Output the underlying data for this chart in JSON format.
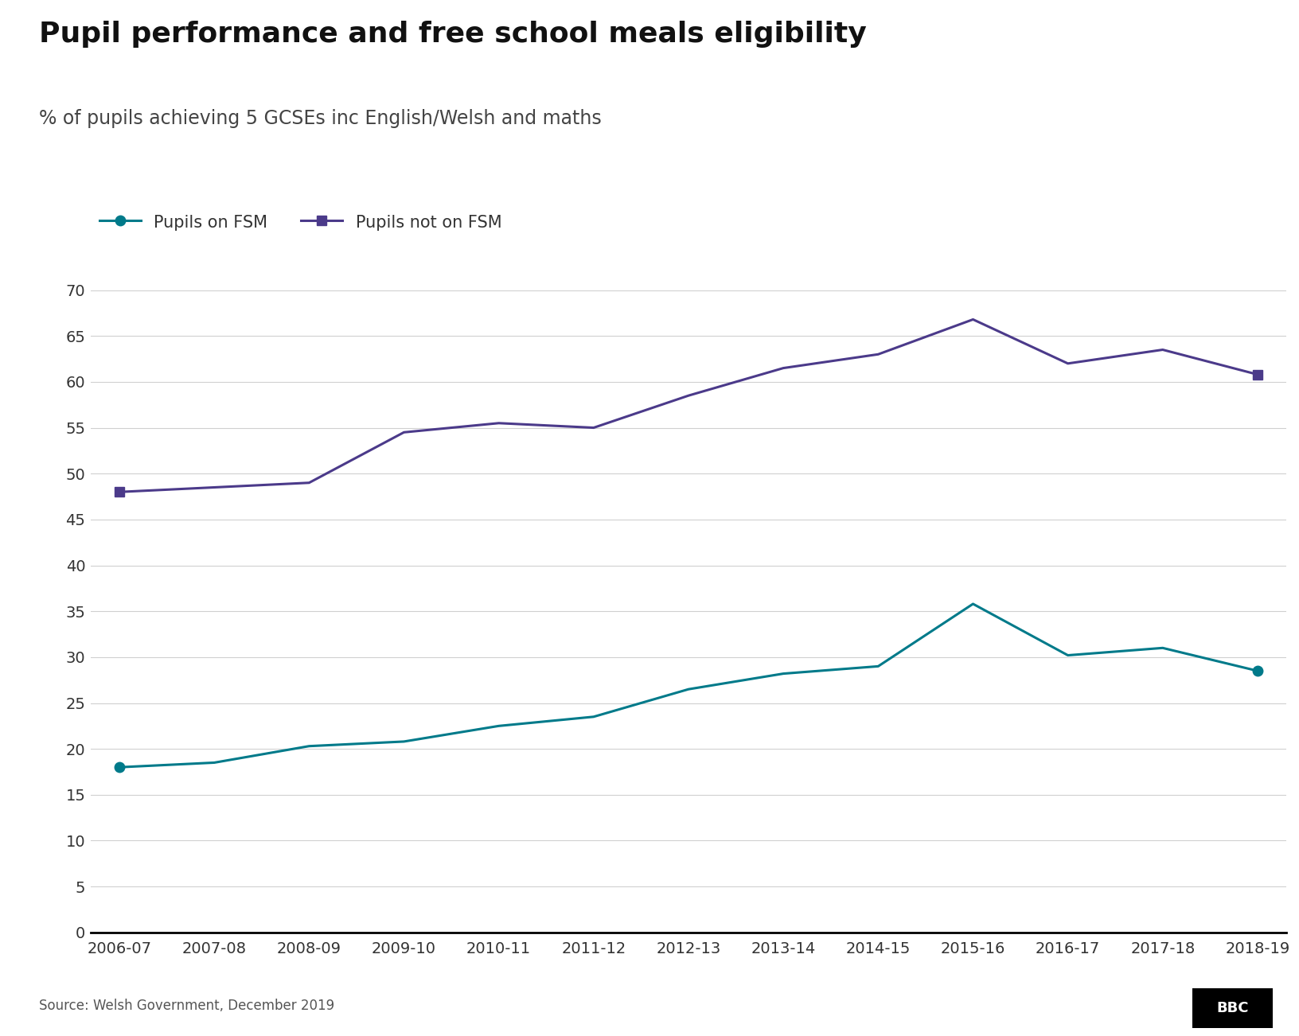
{
  "title": "Pupil performance and free school meals eligibility",
  "subtitle": "% of pupils achieving 5 GCSEs inc English/Welsh and maths",
  "years": [
    "2006-07",
    "2007-08",
    "2008-09",
    "2009-10",
    "2010-11",
    "2011-12",
    "2012-13",
    "2013-14",
    "2014-15",
    "2015-16",
    "2016-17",
    "2017-18",
    "2018-19"
  ],
  "fsm_values": [
    18.0,
    18.5,
    20.3,
    20.8,
    22.5,
    23.5,
    26.5,
    28.2,
    29.0,
    35.8,
    30.2,
    31.0,
    28.5
  ],
  "non_fsm_values": [
    48.0,
    48.5,
    49.0,
    54.5,
    55.5,
    55.0,
    58.5,
    61.5,
    63.0,
    66.8,
    62.0,
    63.5,
    60.8
  ],
  "fsm_color": "#007A8A",
  "non_fsm_color": "#4B3A8A",
  "fsm_label": "Pupils on FSM",
  "non_fsm_label": "Pupils not on FSM",
  "ylim": [
    0,
    70
  ],
  "yticks": [
    0,
    5,
    10,
    15,
    20,
    25,
    30,
    35,
    40,
    45,
    50,
    55,
    60,
    65,
    70
  ],
  "source": "Source: Welsh Government, December 2019",
  "background_color": "#ffffff",
  "grid_color": "#d0d0d0",
  "title_fontsize": 26,
  "subtitle_fontsize": 17,
  "axis_fontsize": 14,
  "legend_fontsize": 15
}
